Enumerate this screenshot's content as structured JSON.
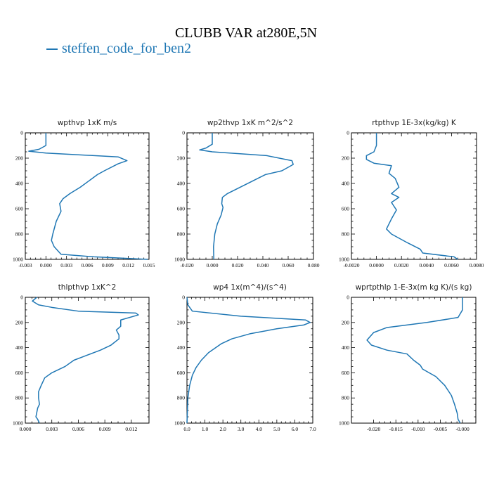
{
  "header": {
    "title": "CLUBB VAR at280E,5N",
    "legend_label": "steffen_code_for_ben2"
  },
  "colors": {
    "series": "#1f77b4"
  },
  "chart_data": [
    {
      "type": "line",
      "title": "wpthvp  1xK m/s",
      "ylim": [
        1000,
        0
      ],
      "xlim": [
        -0.003,
        0.015
      ],
      "y_ticks": [
        "0",
        "200",
        "400",
        "600",
        "800",
        "1000"
      ],
      "x_ticks": [
        "-0.003",
        "0.000",
        "0.003",
        "0.006",
        "0.009",
        "0.012",
        "0.015"
      ],
      "series": [
        {
          "x": [
            0.0,
            0.0,
            -0.001,
            -0.0025,
            0.0,
            0.0105,
            0.0118,
            0.0105,
            0.0085,
            0.0075,
            0.0065,
            0.005,
            0.0035,
            0.0025,
            0.002,
            0.0022,
            0.0015,
            0.001,
            0.0008,
            0.0012,
            0.0022,
            0.007,
            0.0148
          ],
          "y": [
            0,
            100,
            130,
            145,
            160,
            190,
            220,
            245,
            300,
            330,
            370,
            430,
            480,
            520,
            560,
            620,
            700,
            800,
            850,
            900,
            960,
            980,
            1000
          ]
        }
      ]
    },
    {
      "type": "line",
      "title": "wp2thvp  1xK m^2/s^2",
      "ylim": [
        1000,
        0
      ],
      "xlim": [
        -0.02,
        0.08
      ],
      "y_ticks": [
        "0",
        "200",
        "400",
        "600",
        "800",
        "1000"
      ],
      "x_ticks": [
        "-0.020",
        "0.000",
        "0.020",
        "0.040",
        "0.060",
        "0.080"
      ],
      "series": [
        {
          "x": [
            0.0,
            0.0,
            -0.005,
            -0.01,
            0.0,
            0.043,
            0.063,
            0.064,
            0.055,
            0.042,
            0.032,
            0.022,
            0.012,
            0.008,
            0.0075,
            0.0085,
            0.007,
            0.004,
            0.002,
            0.001,
            0.0012
          ],
          "y": [
            0,
            90,
            120,
            135,
            150,
            180,
            220,
            250,
            300,
            330,
            380,
            430,
            480,
            510,
            560,
            590,
            650,
            720,
            800,
            900,
            1000
          ]
        }
      ]
    },
    {
      "type": "line",
      "title": "rtpthvp  1E-3x(kg/kg) K",
      "ylim": [
        1000,
        0
      ],
      "xlim": [
        -0.002,
        0.008
      ],
      "y_ticks": [
        "0",
        "200",
        "400",
        "600",
        "800",
        "1000"
      ],
      "x_ticks": [
        "-0.0020",
        "0.0000",
        "0.0020",
        "0.0040",
        "0.0060",
        "0.0080"
      ],
      "series": [
        {
          "x": [
            0.0,
            0.0,
            -0.0002,
            -0.0008,
            -0.0008,
            -0.0002,
            0.0012,
            0.001,
            0.0015,
            0.0018,
            0.0012,
            0.0018,
            0.0012,
            0.0016,
            0.0012,
            0.0008,
            0.0012,
            0.0025,
            0.0035,
            0.0037,
            0.0062,
            0.0065
          ],
          "y": [
            0,
            100,
            150,
            180,
            210,
            240,
            260,
            320,
            360,
            430,
            480,
            510,
            550,
            610,
            680,
            760,
            800,
            870,
            920,
            950,
            980,
            1000
          ]
        }
      ]
    },
    {
      "type": "line",
      "title": "thlpthvp  1xK^2",
      "ylim": [
        1000,
        0
      ],
      "xlim": [
        0.0,
        0.014
      ],
      "y_ticks": [
        "0",
        "200",
        "400",
        "600",
        "800",
        "1000"
      ],
      "x_ticks": [
        "0.000",
        "0.003",
        "0.006",
        "0.009",
        "0.012"
      ],
      "series": [
        {
          "x": [
            0.0013,
            0.0008,
            0.0015,
            0.003,
            0.006,
            0.0125,
            0.0128,
            0.0108,
            0.0108,
            0.0103,
            0.0106,
            0.0106,
            0.0097,
            0.0085,
            0.007,
            0.0055,
            0.0045,
            0.003,
            0.0022,
            0.0018,
            0.0015,
            0.0015,
            0.0016,
            0.0014,
            0.0012,
            0.0014,
            0.0016
          ],
          "y": [
            0,
            30,
            60,
            80,
            110,
            125,
            140,
            180,
            230,
            260,
            300,
            330,
            380,
            420,
            460,
            500,
            550,
            600,
            640,
            700,
            750,
            800,
            850,
            880,
            950,
            970,
            1000
          ]
        }
      ]
    },
    {
      "type": "line",
      "title": "wp4  1x(m^4)/(s^4)",
      "ylim": [
        1000,
        0
      ],
      "xlim": [
        0.0,
        7.0
      ],
      "y_ticks": [
        "0",
        "200",
        "400",
        "600",
        "800",
        "1000"
      ],
      "x_ticks": [
        "0.0",
        "1.0",
        "2.0",
        "3.0",
        "4.0",
        "5.0",
        "6.0",
        "7.0"
      ],
      "series": [
        {
          "x": [
            0.0,
            0.05,
            0.3,
            3.0,
            6.6,
            6.85,
            6.5,
            5.0,
            3.5,
            2.5,
            1.9,
            1.2,
            0.8,
            0.5,
            0.3,
            0.15,
            0.05,
            0.0
          ],
          "y": [
            0,
            60,
            110,
            150,
            180,
            200,
            220,
            250,
            290,
            330,
            370,
            440,
            500,
            560,
            620,
            700,
            800,
            1000
          ]
        }
      ]
    },
    {
      "type": "line",
      "title": "wprtpthlp  1-E-3x(m kg K)/(s kg)",
      "ylim": [
        1000,
        0
      ],
      "xlim": [
        -0.025,
        0.003
      ],
      "y_ticks": [
        "0",
        "200",
        "400",
        "600",
        "800",
        "1000"
      ],
      "x_ticks": [
        "-0.020",
        "-0.015",
        "-0.010",
        "-0.005",
        "-0.000"
      ],
      "series": [
        {
          "x": [
            0.0,
            0.0,
            -0.001,
            -0.008,
            -0.017,
            -0.02,
            -0.0215,
            -0.0205,
            -0.017,
            -0.0125,
            -0.011,
            -0.0095,
            -0.009,
            -0.008,
            -0.006,
            -0.004,
            -0.0025,
            -0.0018,
            -0.0012,
            -0.001,
            -0.0005
          ],
          "y": [
            0,
            100,
            160,
            200,
            240,
            280,
            340,
            380,
            420,
            450,
            500,
            540,
            570,
            590,
            630,
            700,
            780,
            850,
            920,
            970,
            1000
          ]
        }
      ]
    }
  ]
}
